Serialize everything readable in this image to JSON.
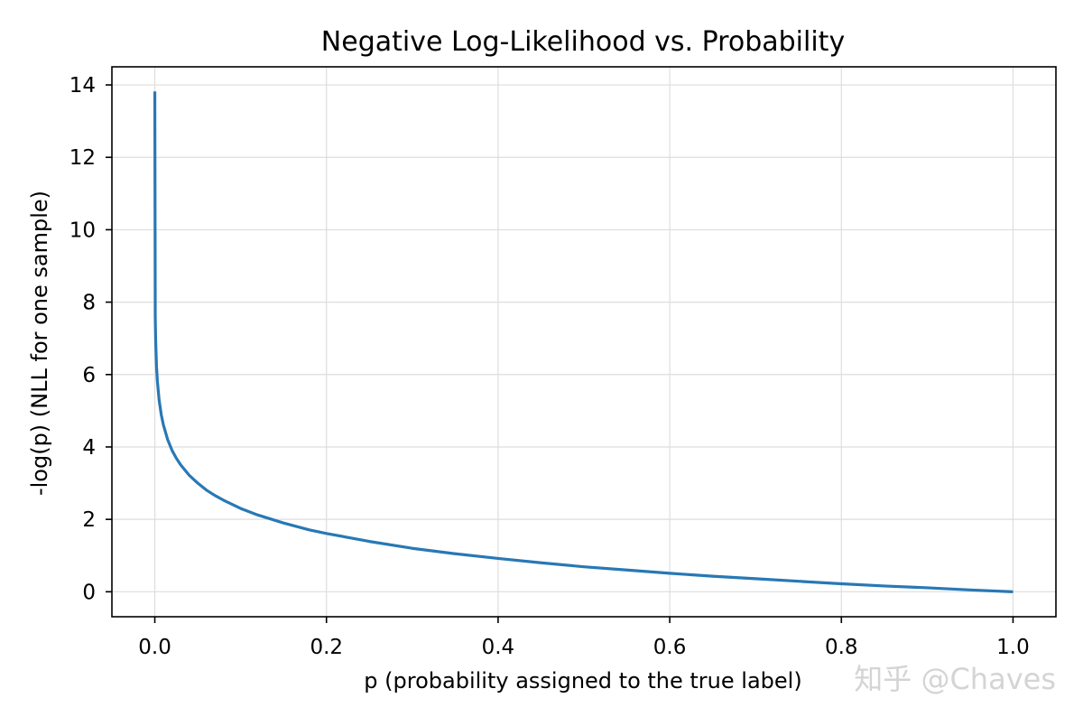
{
  "chart_data": {
    "type": "line",
    "title": "Negative Log-Likelihood vs. Probability",
    "xlabel": "p (probability assigned to the true label)",
    "ylabel": "-log(p)  (NLL for one sample)",
    "xlim": [
      -0.05,
      1.05
    ],
    "ylim": [
      -0.69,
      14.5
    ],
    "x_ticks": [
      0.0,
      0.2,
      0.4,
      0.6,
      0.8,
      1.0
    ],
    "x_tick_labels": [
      "0.0",
      "0.2",
      "0.4",
      "0.6",
      "0.8",
      "1.0"
    ],
    "y_ticks": [
      0,
      2,
      4,
      6,
      8,
      10,
      12,
      14
    ],
    "y_tick_labels": [
      "0",
      "2",
      "4",
      "6",
      "8",
      "10",
      "12",
      "14"
    ],
    "grid": true,
    "legend": false,
    "series": [
      {
        "color": "#2878b5",
        "x": [
          1e-06,
          0.0005,
          0.001,
          0.002,
          0.003,
          0.005,
          0.0075,
          0.01,
          0.015,
          0.02,
          0.025,
          0.03,
          0.04,
          0.05,
          0.06,
          0.07,
          0.08,
          0.1,
          0.12,
          0.15,
          0.18,
          0.2,
          0.25,
          0.3,
          0.35,
          0.4,
          0.45,
          0.5,
          0.55,
          0.6,
          0.65,
          0.7,
          0.75,
          0.8,
          0.85,
          0.9,
          0.95,
          1.0
        ],
        "y": [
          13.82,
          7.6,
          6.91,
          6.21,
          5.81,
          5.3,
          4.89,
          4.61,
          4.2,
          3.91,
          3.69,
          3.51,
          3.22,
          3.0,
          2.81,
          2.66,
          2.53,
          2.3,
          2.12,
          1.9,
          1.71,
          1.61,
          1.39,
          1.2,
          1.05,
          0.92,
          0.8,
          0.69,
          0.6,
          0.51,
          0.43,
          0.36,
          0.29,
          0.22,
          0.16,
          0.11,
          0.05,
          0.0
        ]
      }
    ]
  },
  "watermark": {
    "text": "知乎 @Chaves"
  }
}
